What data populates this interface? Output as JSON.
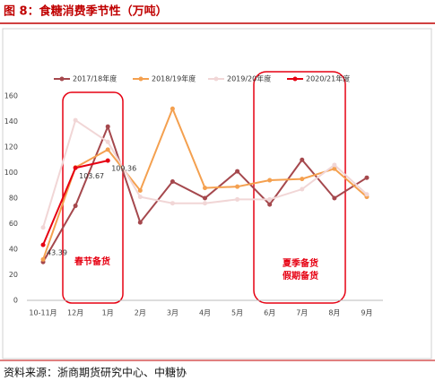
{
  "chart_data": {
    "type": "line",
    "title": "图 8：食糖消费季节性（万吨）",
    "source": "资料来源：浙商期货研究中心、中糖协",
    "categories": [
      "10-11月",
      "12月",
      "1月",
      "2月",
      "3月",
      "4月",
      "5月",
      "6月",
      "7月",
      "8月",
      "9月"
    ],
    "series": [
      {
        "name": "2017/18年度",
        "color": "#a5484d",
        "values": [
          30,
          74,
          136,
          61,
          93,
          80,
          101,
          75,
          110,
          80,
          96
        ]
      },
      {
        "name": "2018/19年度",
        "color": "#f4a04f",
        "values": [
          32,
          104,
          118,
          86,
          150,
          88,
          89,
          94,
          95,
          103,
          81
        ]
      },
      {
        "name": "2019/20年度",
        "color": "#f1d6d6",
        "values": [
          57,
          141,
          124,
          81,
          76,
          76,
          79,
          79,
          87,
          106,
          83
        ]
      },
      {
        "name": "2020/21年度",
        "color": "#e60012",
        "values": [
          43.39,
          103.67,
          109.36,
          null,
          null,
          null,
          null,
          null,
          null,
          null,
          null
        ],
        "data_labels": true
      }
    ],
    "ylim": [
      0,
      160
    ],
    "yticks": [
      0,
      20,
      40,
      60,
      80,
      100,
      120,
      140,
      160
    ],
    "annotations": [
      "春节备货",
      "夏季备货",
      "假期备货"
    ]
  }
}
